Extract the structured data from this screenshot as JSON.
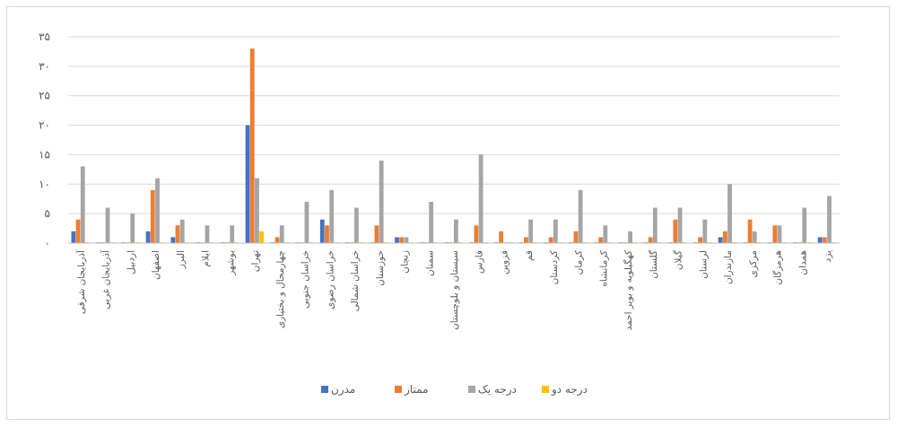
{
  "chart_data": {
    "type": "bar",
    "title": "",
    "xlabel": "",
    "ylabel": "",
    "ylim": [
      0,
      35
    ],
    "yticks": [
      0,
      5,
      10,
      15,
      20,
      25,
      30,
      35
    ],
    "ytick_labels": [
      "۰",
      "۵",
      "۱۰",
      "۱۵",
      "۲۰",
      "۲۵",
      "۳۰",
      "۳۵"
    ],
    "grid": true,
    "legend_position": "bottom",
    "categories": [
      "آذربایجان شرقی",
      "آذربایجان غربی",
      "اردبیل",
      "اصفهان",
      "البرز",
      "ایلام",
      "بوشهر",
      "تهران",
      "چهارمحال و بختیاری",
      "خراسان جنوبی",
      "خراسان رضوی",
      "خراسان شمالی",
      "خوزستان",
      "زنجان",
      "سمنان",
      "سیستان و بلوچستان",
      "فارس",
      "قزوین",
      "قم",
      "کردستان",
      "کرمان",
      "کرمانشاه",
      "کهگیلویه و بویر احمد",
      "گلستان",
      "گیلان",
      "لرستان",
      "مازندران",
      "مرکزی",
      "هرمزگان",
      "همدان",
      "یزد"
    ],
    "series": [
      {
        "name": "مدرن",
        "color": "#4472C4",
        "values": [
          2,
          0,
          0,
          2,
          1,
          0,
          0,
          20,
          0,
          0,
          4,
          0,
          0,
          1,
          0,
          0,
          0,
          0,
          0,
          0,
          0,
          0,
          0,
          0,
          0,
          0,
          1,
          0,
          0,
          0,
          1
        ]
      },
      {
        "name": "ممتاز",
        "color": "#ED7D31",
        "values": [
          4,
          0,
          0,
          9,
          3,
          0,
          0,
          33,
          1,
          0,
          3,
          0,
          3,
          1,
          0,
          0,
          3,
          2,
          1,
          1,
          2,
          1,
          0,
          1,
          4,
          1,
          2,
          4,
          3,
          0,
          1
        ]
      },
      {
        "name": "درجه یک",
        "color": "#A5A5A5",
        "values": [
          13,
          6,
          5,
          11,
          4,
          3,
          3,
          11,
          3,
          7,
          9,
          6,
          14,
          1,
          7,
          4,
          15,
          0,
          4,
          4,
          9,
          3,
          2,
          6,
          6,
          4,
          10,
          2,
          3,
          6,
          8
        ]
      },
      {
        "name": "درجه دو",
        "color": "#FFC000",
        "values": [
          0,
          0,
          0,
          0,
          0,
          0,
          0,
          2,
          0,
          0,
          0,
          0,
          0,
          0,
          0,
          0,
          0,
          0,
          0,
          0,
          0,
          0,
          0,
          0,
          0,
          0,
          0,
          0,
          0,
          0,
          0
        ]
      }
    ]
  }
}
